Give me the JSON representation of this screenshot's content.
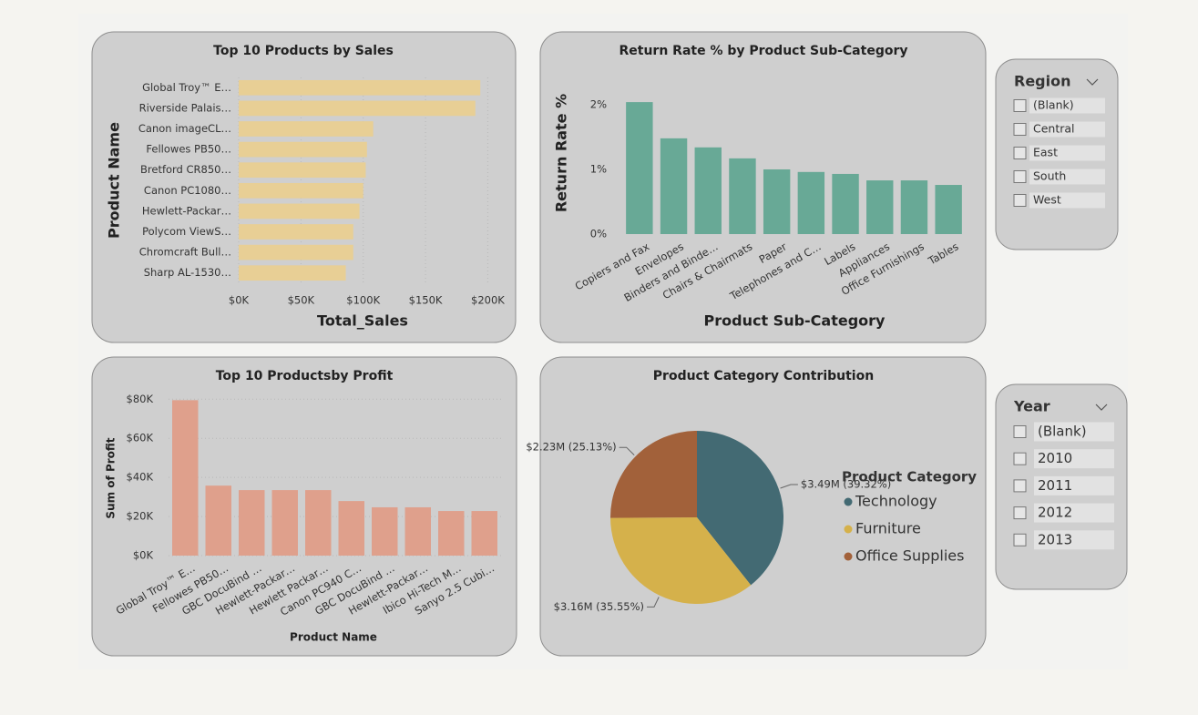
{
  "chart_data": [
    {
      "type": "hbar",
      "title": "Top 10 Products by Sales",
      "x_label": "Total_Sales",
      "y_label": "Product Name",
      "categories": [
        "Global Troy™ E…",
        "Riverside Palais…",
        "Canon imageCL…",
        "Fellowes PB50…",
        "Bretford CR850…",
        "Canon PC1080…",
        "Hewlett-Packar…",
        "Polycom ViewS…",
        "Chromcraft Bull…",
        "Sharp AL-1530…"
      ],
      "values": [
        194000,
        190000,
        108000,
        103000,
        102000,
        100000,
        97000,
        92000,
        92000,
        86000
      ],
      "color": "#e8cf95",
      "xlim": [
        0,
        207000
      ],
      "xticks": [
        {
          "value": 0,
          "label": "$0K"
        },
        {
          "value": 50000,
          "label": "$50K"
        },
        {
          "value": 100000,
          "label": "$100K"
        },
        {
          "value": 150000,
          "label": "$150K"
        },
        {
          "value": 200000,
          "label": "$200K"
        }
      ],
      "grid": true
    },
    {
      "type": "bar",
      "title": "Return Rate % by Product Sub-Category",
      "x_label": "Product Sub-Category",
      "y_label": "Return Rate %",
      "categories": [
        "Copiers and Fax",
        "Envelopes",
        "Binders and Binde…",
        "Chairs & Chairmats",
        "Paper",
        "Telephones and C…",
        "Labels",
        "Appliances",
        "Office Furnishings",
        "Tables"
      ],
      "values": [
        2.04,
        1.48,
        1.34,
        1.17,
        1.0,
        0.96,
        0.93,
        0.83,
        0.83,
        0.76
      ],
      "color": "#68a996",
      "ylim": [
        0,
        2.14
      ],
      "yticks": [
        {
          "value": 0,
          "label": "0%"
        },
        {
          "value": 1,
          "label": "1%"
        },
        {
          "value": 2,
          "label": "2%"
        }
      ],
      "grid": false
    },
    {
      "type": "bar",
      "title": "Top 10 Productsby Profit",
      "x_label": "Product Name",
      "y_label": "Sum of Profit",
      "categories": [
        "Global Troy™ E…",
        "Fellowes PB50…",
        "GBC DocuBind …",
        "Hewlett-Packar…",
        "Hewlett Packar…",
        "Canon PC940 C…",
        "GBC DocuBind …",
        "Hewlett-Packar…",
        "Ibico Hi-Tech M…",
        "Sanyo 2.5 Cubi…"
      ],
      "values": [
        79500,
        35800,
        33500,
        33500,
        33500,
        27900,
        24700,
        24700,
        22800,
        22800
      ],
      "color": "#dfa08c",
      "ylim": [
        0,
        82000
      ],
      "yticks": [
        {
          "value": 0,
          "label": "$0K"
        },
        {
          "value": 20000,
          "label": "$20K"
        },
        {
          "value": 40000,
          "label": "$40K"
        },
        {
          "value": 60000,
          "label": "$60K"
        },
        {
          "value": 80000,
          "label": "$80K"
        }
      ],
      "grid": true
    },
    {
      "type": "pie",
      "title": "Product Category Contribution",
      "legend_title": "Product Category",
      "categories": [
        "Technology",
        "Furniture",
        "Office Supplies"
      ],
      "values": [
        3490000,
        3160000,
        2230000
      ],
      "value_labels": [
        "$3.49M (39.32%)",
        "$3.16M (35.55%)",
        "$2.23M (25.13%)"
      ],
      "colors": [
        "#436a73",
        "#d5b14b",
        "#a2613a"
      ]
    }
  ],
  "slicers": [
    {
      "title": "Region",
      "items": [
        "(Blank)",
        "Central",
        "East",
        "South",
        "West"
      ]
    },
    {
      "title": "Year",
      "items": [
        "(Blank)",
        "2010",
        "2011",
        "2012",
        "2013"
      ]
    }
  ]
}
